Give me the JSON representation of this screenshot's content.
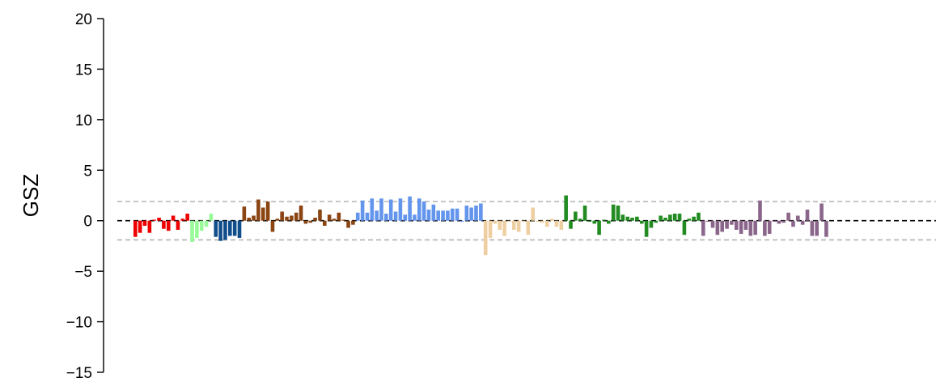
{
  "chart_data": {
    "type": "bar",
    "title": "",
    "xlabel": "",
    "ylabel": "GSZ",
    "ylim": [
      -15,
      20
    ],
    "yticks": [
      -15,
      -10,
      -5,
      0,
      5,
      10,
      15,
      20
    ],
    "ytick_labels": [
      "−15",
      "−10",
      "−5",
      "0",
      "5",
      "10",
      "15",
      "20"
    ],
    "reference_lines": [
      {
        "value": 0,
        "style": "dashed",
        "color": "#000000"
      },
      {
        "value": 1.9,
        "style": "dashed",
        "color": "#b3b3b3"
      },
      {
        "value": -1.9,
        "style": "dashed",
        "color": "#b3b3b3"
      }
    ],
    "grid": false,
    "series": [
      {
        "color": "#ee0000",
        "values": [
          -1.6,
          -1.2,
          -0.5,
          -1.2,
          0.1,
          0.3,
          -0.8,
          -1.0,
          0.5,
          -0.9,
          0.2,
          0.7
        ]
      },
      {
        "color": "#98fb98",
        "values": [
          -2.1,
          -1.7,
          -1.0,
          -0.6,
          0.7
        ]
      },
      {
        "color": "#104e8b",
        "values": [
          -1.6,
          -2.0,
          -1.9,
          -1.5,
          -1.5,
          -1.7
        ]
      },
      {
        "color": "#8b4513",
        "values": [
          1.4,
          0.3,
          0.5,
          2.1,
          1.3,
          1.9,
          -1.1,
          0.2,
          0.9,
          0.4,
          0.5,
          0.8,
          1.5,
          -0.3,
          -0.2,
          0.3,
          1.1,
          -0.5,
          0.6,
          0.2,
          0.8,
          0.1,
          -0.7,
          -0.4
        ]
      },
      {
        "color": "#6495ed",
        "values": [
          0.8,
          2.0,
          0.8,
          2.2,
          1.0,
          2.2,
          0.7,
          2.1,
          0.9,
          2.2,
          0.6,
          2.4,
          0.6,
          2.2,
          1.9,
          1.1,
          1.6,
          1.0,
          1.0,
          1.0,
          1.2,
          1.2,
          -0.1,
          1.5,
          1.3,
          1.5,
          1.7
        ]
      },
      {
        "color": "#eecfa1",
        "values": [
          -3.4,
          -1.7,
          -0.3,
          -0.9,
          -1.5,
          -0.1,
          -0.9,
          -1.1,
          -0.1,
          -1.4,
          1.3,
          -0.1,
          -0.2,
          -0.6,
          0.2,
          -0.6,
          -0.9
        ]
      },
      {
        "color": "#228b22",
        "values": [
          2.5,
          -0.8,
          0.9,
          0.2,
          1.5,
          -0.1,
          -0.3,
          -1.4,
          0.1,
          -0.3,
          1.6,
          1.5,
          0.6,
          0.4,
          0.3,
          0.4,
          -0.3,
          -1.6,
          -0.7,
          -0.2,
          0.5,
          0.3,
          0.6,
          0.7,
          0.7,
          -1.4,
          0.2,
          0.4,
          0.8
        ]
      },
      {
        "color": "#8b668b",
        "values": [
          -1.5,
          -0.1,
          -0.7,
          -1.4,
          -1.1,
          -0.8,
          -0.4,
          -0.9,
          -1.3,
          -0.9,
          -1.5,
          -1.4,
          2.0,
          -1.5,
          -1.3,
          -0.1,
          -0.3,
          -0.2,
          0.8,
          -0.6,
          0.5,
          -0.4,
          1.1,
          -1.5,
          -1.5,
          1.7,
          -1.6
        ]
      }
    ]
  }
}
